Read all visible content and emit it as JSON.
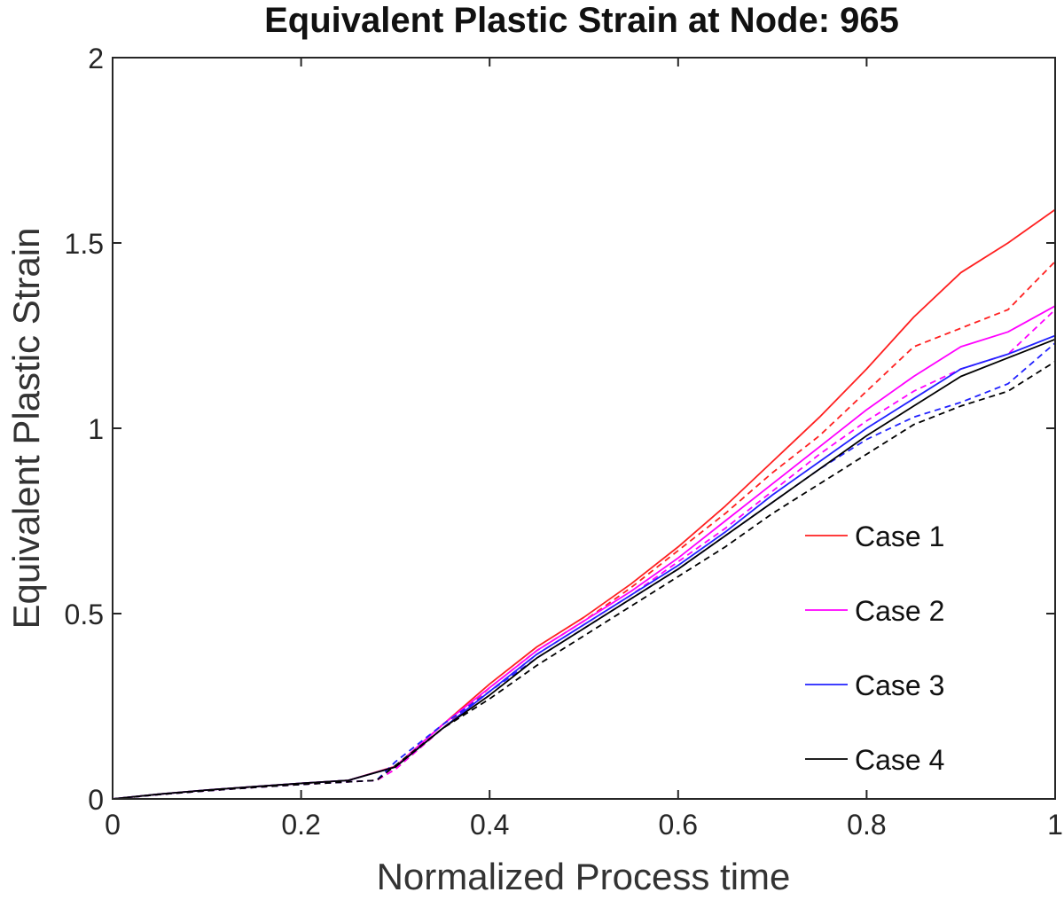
{
  "chart_data": {
    "type": "line",
    "title": "Equivalent Plastic Strain at Node: 965",
    "xlabel": "Normalized Process time",
    "ylabel": "Equivalent Plastic Strain",
    "xlim": [
      0,
      1
    ],
    "ylim": [
      0,
      2
    ],
    "xticks": [
      0,
      0.2,
      0.4,
      0.6,
      0.8,
      1
    ],
    "xtick_labels": [
      "0",
      "0.2",
      "0.4",
      "0.6",
      "0.8",
      "1"
    ],
    "yticks": [
      0,
      0.5,
      1,
      1.5,
      2
    ],
    "ytick_labels": [
      "0",
      "0.5",
      "1",
      "1.5",
      "2"
    ],
    "grid": false,
    "legend_position": "right",
    "series": [
      {
        "name": "Case 1",
        "color": "#ff2020",
        "style": "solid",
        "x": [
          0,
          0.05,
          0.1,
          0.15,
          0.2,
          0.25,
          0.3,
          0.35,
          0.4,
          0.45,
          0.5,
          0.55,
          0.6,
          0.65,
          0.7,
          0.75,
          0.8,
          0.85,
          0.9,
          0.95,
          1
        ],
        "y": [
          0,
          0.013,
          0.024,
          0.033,
          0.042,
          0.05,
          0.088,
          0.2,
          0.31,
          0.41,
          0.49,
          0.58,
          0.68,
          0.79,
          0.91,
          1.03,
          1.16,
          1.3,
          1.42,
          1.5,
          1.59
        ]
      },
      {
        "name": "",
        "color": "#ff2020",
        "style": "dashed",
        "x": [
          0,
          0.05,
          0.1,
          0.15,
          0.2,
          0.25,
          0.28,
          0.3,
          0.35,
          0.4,
          0.45,
          0.5,
          0.55,
          0.6,
          0.65,
          0.7,
          0.75,
          0.8,
          0.85,
          0.9,
          0.95,
          1
        ],
        "y": [
          0,
          0.012,
          0.022,
          0.031,
          0.039,
          0.046,
          0.05,
          0.08,
          0.19,
          0.3,
          0.4,
          0.48,
          0.57,
          0.67,
          0.77,
          0.88,
          0.98,
          1.1,
          1.22,
          1.27,
          1.32,
          1.45
        ]
      },
      {
        "name": "Case 2",
        "color": "#ff00ff",
        "style": "solid",
        "x": [
          0,
          0.05,
          0.1,
          0.15,
          0.2,
          0.25,
          0.3,
          0.35,
          0.4,
          0.45,
          0.5,
          0.55,
          0.6,
          0.65,
          0.7,
          0.75,
          0.8,
          0.85,
          0.9,
          0.95,
          1
        ],
        "y": [
          0,
          0.013,
          0.024,
          0.033,
          0.042,
          0.05,
          0.087,
          0.2,
          0.3,
          0.4,
          0.48,
          0.56,
          0.65,
          0.75,
          0.85,
          0.95,
          1.05,
          1.14,
          1.22,
          1.26,
          1.33
        ]
      },
      {
        "name": "",
        "color": "#ff00ff",
        "style": "dashed",
        "x": [
          0,
          0.05,
          0.1,
          0.15,
          0.2,
          0.25,
          0.28,
          0.3,
          0.35,
          0.4,
          0.45,
          0.5,
          0.55,
          0.6,
          0.65,
          0.7,
          0.75,
          0.8,
          0.85,
          0.9,
          0.95,
          1
        ],
        "y": [
          0,
          0.012,
          0.022,
          0.031,
          0.039,
          0.046,
          0.05,
          0.08,
          0.19,
          0.29,
          0.39,
          0.47,
          0.55,
          0.64,
          0.73,
          0.83,
          0.93,
          1.02,
          1.1,
          1.16,
          1.2,
          1.32
        ]
      },
      {
        "name": "Case 3",
        "color": "#2222ff",
        "style": "solid",
        "x": [
          0,
          0.05,
          0.1,
          0.15,
          0.2,
          0.25,
          0.3,
          0.35,
          0.4,
          0.45,
          0.5,
          0.55,
          0.6,
          0.65,
          0.7,
          0.75,
          0.8,
          0.85,
          0.9,
          0.95,
          1
        ],
        "y": [
          0,
          0.013,
          0.024,
          0.033,
          0.042,
          0.05,
          0.086,
          0.19,
          0.29,
          0.39,
          0.47,
          0.55,
          0.63,
          0.72,
          0.82,
          0.91,
          1.0,
          1.08,
          1.16,
          1.2,
          1.25
        ]
      },
      {
        "name": "",
        "color": "#2222ff",
        "style": "dashed",
        "x": [
          0,
          0.05,
          0.1,
          0.15,
          0.2,
          0.25,
          0.28,
          0.3,
          0.35,
          0.4,
          0.45,
          0.5,
          0.55,
          0.6,
          0.65,
          0.7,
          0.75,
          0.8,
          0.85,
          0.9,
          0.95,
          1
        ],
        "y": [
          0,
          0.012,
          0.022,
          0.031,
          0.039,
          0.046,
          0.05,
          0.1,
          0.2,
          0.29,
          0.38,
          0.46,
          0.54,
          0.62,
          0.71,
          0.8,
          0.89,
          0.97,
          1.03,
          1.07,
          1.12,
          1.23
        ]
      },
      {
        "name": "Case 4",
        "color": "#000000",
        "style": "solid",
        "x": [
          0,
          0.05,
          0.1,
          0.15,
          0.2,
          0.25,
          0.3,
          0.35,
          0.4,
          0.45,
          0.5,
          0.55,
          0.6,
          0.65,
          0.7,
          0.75,
          0.8,
          0.85,
          0.9,
          0.95,
          1
        ],
        "y": [
          0,
          0.013,
          0.024,
          0.033,
          0.042,
          0.05,
          0.086,
          0.19,
          0.28,
          0.38,
          0.46,
          0.54,
          0.62,
          0.71,
          0.8,
          0.89,
          0.98,
          1.06,
          1.14,
          1.19,
          1.24
        ]
      },
      {
        "name": "",
        "color": "#000000",
        "style": "dashed",
        "x": [
          0,
          0.05,
          0.1,
          0.15,
          0.2,
          0.25,
          0.28,
          0.3,
          0.35,
          0.4,
          0.45,
          0.5,
          0.55,
          0.6,
          0.65,
          0.7,
          0.75,
          0.8,
          0.85,
          0.9,
          0.95,
          1
        ],
        "y": [
          0,
          0.012,
          0.022,
          0.031,
          0.039,
          0.046,
          0.05,
          0.09,
          0.19,
          0.27,
          0.36,
          0.44,
          0.52,
          0.6,
          0.68,
          0.77,
          0.85,
          0.93,
          1.01,
          1.06,
          1.1,
          1.18
        ]
      }
    ]
  }
}
